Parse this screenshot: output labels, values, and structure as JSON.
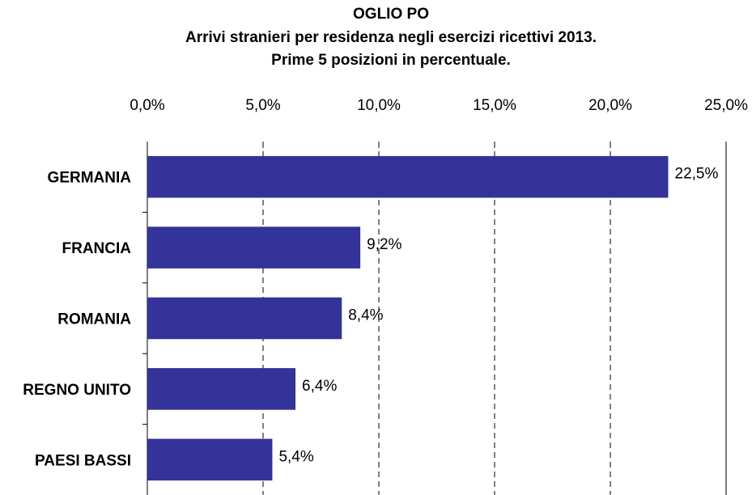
{
  "chart_data": {
    "type": "bar",
    "title": [
      "OGLIO PO",
      "Arrivi stranieri per residenza negli esercizi ricettivi 2013.",
      "Prime 5 posizioni in percentuale."
    ],
    "categories": [
      "GERMANIA",
      "FRANCIA",
      "ROMANIA",
      "REGNO UNITO",
      "PAESI BASSI"
    ],
    "values": [
      22.5,
      9.2,
      8.4,
      6.4,
      5.4
    ],
    "value_labels": [
      "22,5%",
      "9,2%",
      "8,4%",
      "6,4%",
      "5,4%"
    ],
    "color": "#333399",
    "orientation": "horizontal",
    "xlim": [
      0,
      25
    ],
    "xticks": [
      {
        "value": 0,
        "label": "0,0%"
      },
      {
        "value": 5,
        "label": "5,0%"
      },
      {
        "value": 10,
        "label": "10,0%"
      },
      {
        "value": 15,
        "label": "15,0%"
      },
      {
        "value": 20,
        "label": "20,0%"
      },
      {
        "value": 25,
        "label": "25,0%"
      }
    ],
    "grid": true
  }
}
